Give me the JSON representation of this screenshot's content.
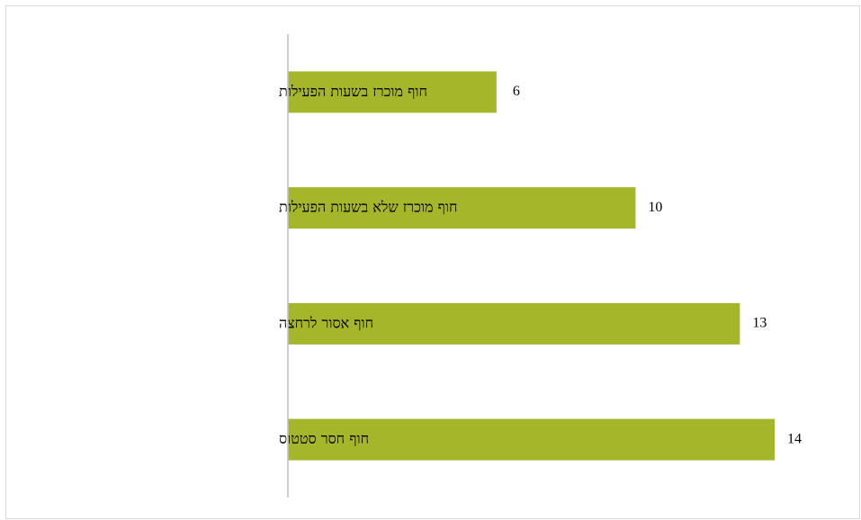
{
  "chart_data": {
    "type": "bar",
    "orientation": "horizontal",
    "categories": [
      "חוף מוכרז בשעות הפעילות",
      "חוף מוכרז שלא בשעות הפעילות",
      "חוף אסור לרחצה",
      "חוף חסר סטטוס"
    ],
    "values": [
      6,
      10,
      13,
      14
    ],
    "title": "",
    "xlabel": "",
    "ylabel": "",
    "xlim": [
      0,
      14
    ],
    "grid": false,
    "legend": "none",
    "bar_color": "#a5b62a",
    "axis_color": "#bfbfbf"
  }
}
